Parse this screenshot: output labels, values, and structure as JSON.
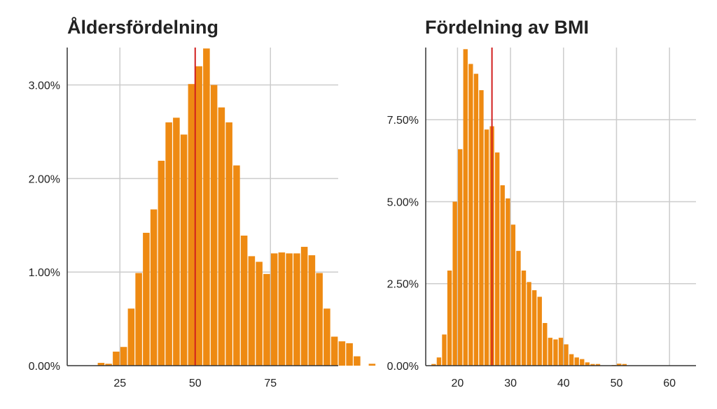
{
  "colors": {
    "bar": "#EE8A12",
    "median_line": "#D11F1F",
    "grid": "#CCCCCC",
    "axis": "#333333",
    "text": "#222222"
  },
  "chart_data": [
    {
      "type": "bar",
      "title": "Åldersfördelning",
      "xlabel": "",
      "ylabel": "",
      "bin_width": 2.5,
      "x_start": 12.5,
      "xlim": [
        7.5,
        97.5
      ],
      "ylim": [
        0,
        3.4
      ],
      "x_ticks": [
        25,
        50,
        75
      ],
      "x_tick_labels": [
        "25",
        "50",
        "75"
      ],
      "y_ticks": [
        0,
        1,
        2,
        3
      ],
      "y_tick_labels": [
        "0.00%",
        "1.00%",
        "2.00%",
        "3.00%"
      ],
      "grid": true,
      "median_line_x": 50,
      "values": [
        0,
        0,
        0.03,
        0.02,
        0.15,
        0.2,
        0.61,
        0.99,
        1.42,
        1.67,
        2.19,
        2.6,
        2.65,
        2.47,
        3.01,
        3.2,
        3.39,
        3.0,
        2.76,
        2.6,
        2.14,
        1.39,
        1.17,
        1.11,
        0.98,
        1.2,
        1.21,
        1.2,
        1.2,
        1.27,
        1.18,
        0.99,
        0.61,
        0.31,
        0.26,
        0.24,
        0.1,
        0,
        0.02
      ]
    },
    {
      "type": "bar",
      "title": "Fördelning av BMI",
      "xlabel": "",
      "ylabel": "",
      "bin_width": 1,
      "x_start": 15,
      "xlim": [
        14,
        65
      ],
      "ylim": [
        0,
        9.7
      ],
      "x_ticks": [
        20,
        30,
        40,
        50,
        60
      ],
      "x_tick_labels": [
        "20",
        "30",
        "40",
        "50",
        "60"
      ],
      "y_ticks": [
        0,
        2.5,
        5,
        7.5
      ],
      "y_tick_labels": [
        "0.00%",
        "2.50%",
        "5.00%",
        "7.50%"
      ],
      "grid": true,
      "median_line_x": 26.5,
      "values": [
        0.05,
        0.25,
        0.95,
        2.9,
        5.0,
        6.6,
        9.65,
        9.2,
        8.9,
        8.4,
        7.2,
        7.3,
        6.5,
        5.5,
        5.1,
        4.3,
        3.5,
        2.9,
        2.55,
        2.3,
        2.1,
        1.3,
        0.85,
        0.8,
        0.85,
        0.65,
        0.35,
        0.25,
        0.2,
        0.1,
        0.05,
        0.05,
        0,
        0,
        0.02,
        0.06,
        0.05,
        0,
        0.01,
        0.01,
        0,
        0,
        0,
        0,
        0,
        0,
        0
      ]
    }
  ]
}
